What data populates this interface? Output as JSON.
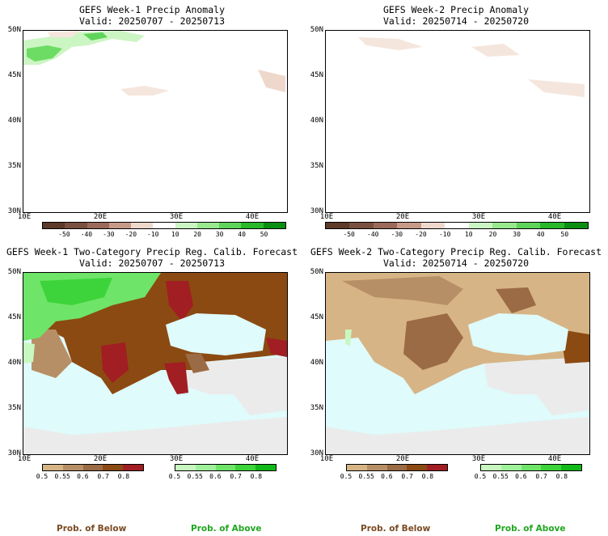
{
  "panels": [
    {
      "title": "GEFS Week-1 Precip Anomaly",
      "valid": "Valid: 20250707 - 20250713"
    },
    {
      "title": "GEFS Week-2 Precip Anomaly",
      "valid": "Valid: 20250714 - 20250720"
    },
    {
      "title": "GEFS Week-1 Two-Category Precip Reg. Calib. Forecast",
      "valid": "Valid: 20250707 - 20250713"
    },
    {
      "title": "GEFS Week-2 Two-Category Precip Reg. Calib. Forecast",
      "valid": "Valid: 20250714 - 20250720"
    }
  ],
  "lat_labels": [
    "50N",
    "45N",
    "40N",
    "35N",
    "30N"
  ],
  "lon_labels": [
    "10E",
    "20E",
    "30E",
    "40E"
  ],
  "anomaly_colorbar": {
    "labels": [
      "-50",
      "-40",
      "-30",
      "-20",
      "-10",
      "10",
      "20",
      "30",
      "40",
      "50"
    ],
    "colors": [
      "#5e3a2a",
      "#7a5040",
      "#9b6a5a",
      "#c79a88",
      "#eed8cc",
      "#ffffff",
      "#ccf5c4",
      "#98e88e",
      "#5ed45a",
      "#28b82a",
      "#0a8f12"
    ]
  },
  "below_colorbar": {
    "labels": [
      "0.5",
      "0.55",
      "0.6",
      "0.7",
      "0.8"
    ],
    "colors": [
      "#d7b486",
      "#b78f66",
      "#9b6b45",
      "#8b4a12",
      "#a11e22"
    ]
  },
  "above_colorbar": {
    "labels": [
      "0.5",
      "0.55",
      "0.6",
      "0.7",
      "0.8"
    ],
    "colors": [
      "#c8f8c0",
      "#9ff29a",
      "#6ee468",
      "#3cd43a",
      "#10b818"
    ]
  },
  "legend": {
    "below": "Prob. of Below",
    "above": "Prob. of Above"
  },
  "colors": {
    "sea": "#dffbfb",
    "no_forecast": "#ebebeb",
    "brown_text": "#7a4a22",
    "green_text": "#21a521"
  }
}
